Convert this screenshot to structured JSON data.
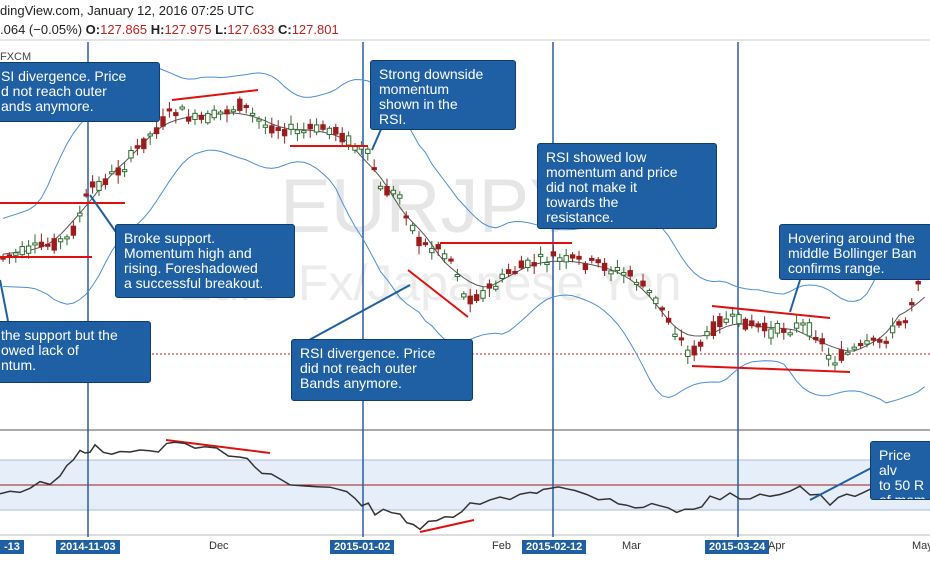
{
  "header": {
    "line1": "dingView.com, January 12, 2016 07:25 UTC",
    "change": ".064 (−0.05%)",
    "o_label": "O:",
    "o": "127.865",
    "h_label": "H:",
    "h": "127.975",
    "l_label": "L:",
    "l": "127.633",
    "c_label": "C:",
    "c": "127.801"
  },
  "symbol_suffix": "FXCM",
  "watermark": {
    "line1": "EURJPY",
    "line2": "Euro Fx/Japanese Yen"
  },
  "annotations": [
    "SI divergence. Price\nd not reach outer\nands anymore.",
    "Strong downside\nmomentum\nshown in the\nRSI.",
    "RSI showed low\nmomentum and price\ndid not make it\ntowards the\nresistance.",
    "Hovering around the\nmiddle Bollinger Ban\nconfirms range.",
    "Broke support.\nMomentum high and\nrising. Foreshadowed\na successful breakout.",
    "the support but the\nowed lack of\nntum.",
    "RSI divergence. Price\ndid not reach outer\nBands anymore.",
    "Price alv\nto 50 R\nof mom"
  ],
  "x_axis": {
    "ticks": [
      "-13",
      "2014-11-03",
      "Dec",
      "2015-01-02",
      "Feb",
      "2015-02-12",
      "Mar",
      "2015-03-24",
      "Apr",
      "May"
    ],
    "highlighted": [
      true,
      true,
      false,
      true,
      false,
      true,
      false,
      true,
      false,
      false
    ]
  },
  "colors": {
    "candle": "#9a1c1c",
    "band": "#4a90d9",
    "mid": "#555555",
    "vline": "#2a5caa",
    "trend": "#e01010",
    "rsi": "#333333",
    "annotation": "#1f5fa3"
  },
  "chart_data": {
    "type": "candlestick",
    "x": [
      "2014-10-13",
      "2014-11-03",
      "2014-12-01",
      "2015-01-02",
      "2015-02-02",
      "2015-02-12",
      "2015-03-02",
      "2015-03-24",
      "2015-04-01",
      "2015-05-01"
    ],
    "close": [
      133.5,
      137.5,
      147.0,
      144.0,
      134.0,
      135.5,
      131.0,
      129.0,
      128.0,
      136.0
    ],
    "rsi_series": [
      {
        "name": "RSI",
        "values": [
          45,
          72,
          76,
          44,
          34,
          52,
          44,
          38,
          48,
          60
        ]
      }
    ],
    "rsi_reference": 50,
    "indicators": [
      "Bollinger Bands",
      "RSI"
    ]
  }
}
